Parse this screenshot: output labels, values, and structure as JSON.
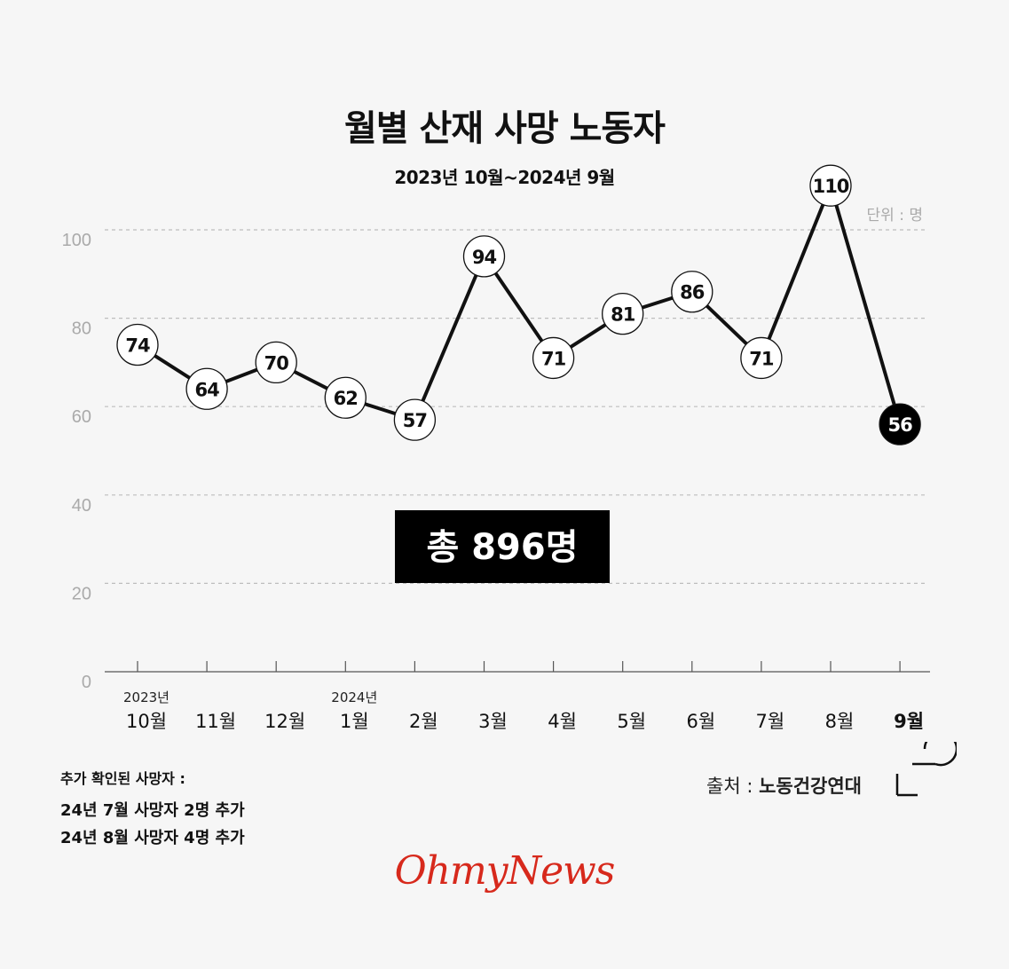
{
  "chart_data": {
    "type": "line",
    "title": "월별 산재 사망 노동자",
    "subtitle": "2023년 10월~2024년 9월",
    "unit_label": "단위 : 명",
    "categories": [
      "10월",
      "11월",
      "12월",
      "1월",
      "2월",
      "3월",
      "4월",
      "5월",
      "6월",
      "7월",
      "8월",
      "9월"
    ],
    "year_labels": [
      {
        "category": "10월",
        "text": "2023년"
      },
      {
        "category": "1월",
        "text": "2024년"
      }
    ],
    "values": [
      74,
      64,
      70,
      62,
      57,
      94,
      71,
      81,
      86,
      71,
      110,
      56
    ],
    "yticks": [
      0,
      20,
      40,
      60,
      80,
      100
    ],
    "ylim": [
      0,
      110
    ],
    "highlight_last": true,
    "grid": true,
    "total_label": "총 896명"
  },
  "footnote": {
    "title": "추가 확인된 사망자 :",
    "lines": [
      "24년 7월 사망자 2명 추가",
      "24년 8월 사망자 4명 추가"
    ]
  },
  "source": {
    "label": "출처 : ",
    "name": "노동건강연대"
  },
  "brand": "OhmyNews",
  "colors": {
    "line": "#111111",
    "grid": "#bdbdbd",
    "tick_text": "#aaaaaa",
    "highlight": "#000000",
    "brand": "#d7291c"
  }
}
